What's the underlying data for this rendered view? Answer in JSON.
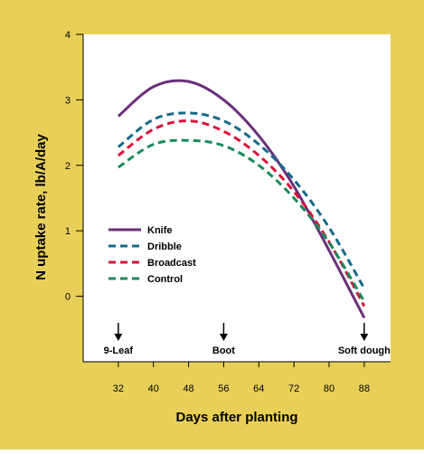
{
  "chart_data": {
    "type": "line",
    "xlabel": "Days after planting",
    "ylabel": "N uptake rate, lb/A/day",
    "xlim": [
      24,
      94
    ],
    "ylim": [
      -1,
      4
    ],
    "xticks": [
      32,
      40,
      48,
      56,
      64,
      72,
      80,
      88
    ],
    "yticks": [
      0,
      1,
      2,
      3,
      4
    ],
    "grid": false,
    "legend_position": "left-center",
    "series": [
      {
        "name": "Knife",
        "color": "#6a2f7a",
        "dash": "solid",
        "x": [
          32,
          40,
          48,
          56,
          64,
          72,
          80,
          88
        ],
        "y": [
          2.75,
          3.2,
          3.28,
          3.0,
          2.45,
          1.68,
          0.7,
          -0.33
        ]
      },
      {
        "name": "Dribble",
        "color": "#176a8a",
        "dash": "dashed",
        "x": [
          32,
          40,
          48,
          56,
          64,
          72,
          80,
          88
        ],
        "y": [
          2.28,
          2.7,
          2.8,
          2.68,
          2.32,
          1.78,
          1.05,
          0.12
        ]
      },
      {
        "name": "Broadcast",
        "color": "#d8143c",
        "dash": "dashed",
        "x": [
          32,
          40,
          48,
          56,
          64,
          72,
          80,
          88
        ],
        "y": [
          2.15,
          2.55,
          2.68,
          2.52,
          2.15,
          1.6,
          0.83,
          -0.15
        ]
      },
      {
        "name": "Control",
        "color": "#1a8a5a",
        "dash": "dashed",
        "x": [
          32,
          40,
          48,
          56,
          64,
          72,
          80,
          88
        ],
        "y": [
          1.97,
          2.32,
          2.38,
          2.3,
          2.0,
          1.5,
          0.82,
          -0.08
        ]
      }
    ],
    "annotations": [
      {
        "label": "9-Leaf",
        "x": 32
      },
      {
        "label": "Boot",
        "x": 56
      },
      {
        "label": "Soft dough",
        "x": 88
      }
    ]
  },
  "colors": {
    "background": "#e8d058",
    "plot_area": "#ffffff",
    "axis": "#000000"
  }
}
